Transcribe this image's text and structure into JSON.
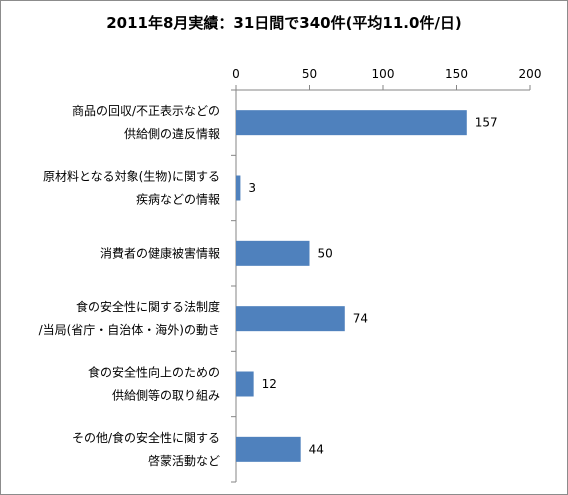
{
  "chart_data": {
    "type": "bar",
    "orientation": "horizontal",
    "title": "2011年8月実績：31日間で340件(平均11.0件/日)",
    "categories": [
      [
        "商品の回収/不正表示などの",
        "供給側の違反情報"
      ],
      [
        "原材料となる対象(生物)に関する",
        "疾病などの情報"
      ],
      [
        "消費者の健康被害情報"
      ],
      [
        "食の安全性に関する法制度",
        "/当局(省庁・自治体・海外)の動き"
      ],
      [
        "食の安全性向上のための",
        "供給側等の取り組み"
      ],
      [
        "その他/食の安全性に関する",
        "啓蒙活動など"
      ]
    ],
    "values": [
      157,
      3,
      50,
      74,
      12,
      44
    ],
    "xlim": [
      0,
      200
    ],
    "xticks": [
      0,
      50,
      100,
      150,
      200
    ],
    "axis_position": "top",
    "bar_color": "#4f81bd",
    "data_labels": true,
    "grid": false
  }
}
